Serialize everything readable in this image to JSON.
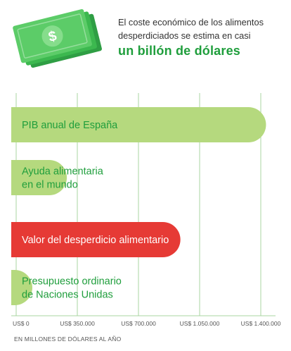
{
  "header": {
    "intro": "El coste económico de los alimentos desperdiciados se estima en casi",
    "highlight": "un billón de dólares"
  },
  "icon": "banknotes-icon",
  "colors": {
    "light_green": "#b5d97e",
    "label_green": "#1f9e3c",
    "red": "#e63a35",
    "grid": "#a8d4a0",
    "tick_text": "#555555"
  },
  "chart_data": {
    "type": "bar",
    "orientation": "horizontal",
    "categories": [
      [
        "PIB anual de España"
      ],
      [
        "Ayuda alimentaria",
        "en el mundo"
      ],
      [
        "Valor del desperdicio alimentario"
      ],
      [
        "Presupuesto ordinario",
        "de Naciones Unidas"
      ]
    ],
    "values": [
      1430000,
      290000,
      940000,
      5400
    ],
    "highlight_index": 2,
    "xlim": [
      0,
      1400000
    ],
    "ticks": [
      0,
      350000,
      700000,
      1050000,
      1400000
    ],
    "tick_labels": [
      "US$ 0",
      "US$ 350.000",
      "US$ 700.000",
      "US$ 1.050.000",
      "US$ 1.400.000"
    ],
    "xlabel": "EN MILLONES DE DÓLARES AL AÑO",
    "grid": true
  }
}
